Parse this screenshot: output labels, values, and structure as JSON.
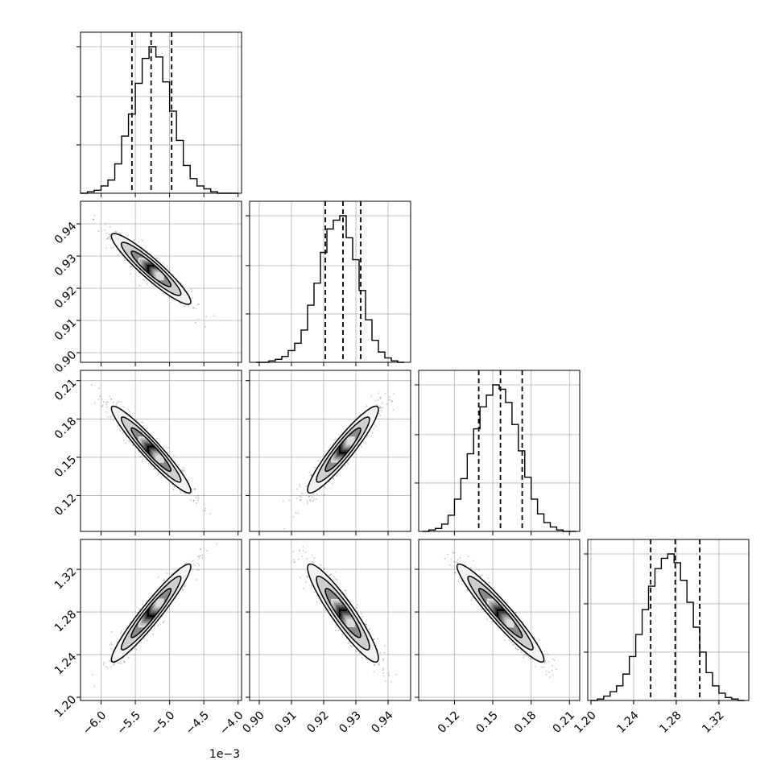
{
  "chart_data": {
    "type": "corner",
    "grid": true,
    "x_offset_label": "1e−3",
    "parameters": [
      {
        "hist_range": [
          -6.3,
          -3.95
        ],
        "hist_peak": 1.0,
        "quantiles": [
          -5.55,
          -5.27,
          -4.97
        ],
        "tick_values": [
          -6.0,
          -5.5,
          -5.0,
          -4.5,
          -4.0
        ],
        "tick_labels": [
          "−6.0",
          "−5.5",
          "−5.0",
          "−4.5",
          "−4.0"
        ],
        "hist": {
          "edges": [
            -6.3,
            -6.2,
            -6.1,
            -6.0,
            -5.9,
            -5.8,
            -5.7,
            -5.6,
            -5.5,
            -5.4,
            -5.3,
            -5.2,
            -5.1,
            -5.0,
            -4.9,
            -4.8,
            -4.7,
            -4.6,
            -4.5,
            -4.4,
            -4.3,
            -4.2,
            -4.1,
            -4.0
          ],
          "counts": [
            0.0,
            0.01,
            0.02,
            0.05,
            0.09,
            0.2,
            0.39,
            0.54,
            0.75,
            0.92,
            1.0,
            0.93,
            0.76,
            0.56,
            0.36,
            0.19,
            0.1,
            0.05,
            0.03,
            0.01,
            0.0,
            0.0,
            0.0
          ]
        }
      },
      {
        "hist_range": [
          0.897,
          0.947
        ],
        "hist_peak": 1.0,
        "quantiles": [
          0.9205,
          0.926,
          0.9315
        ],
        "tick_values": [
          0.9,
          0.91,
          0.92,
          0.93,
          0.94
        ],
        "tick_labels": [
          "0.90",
          "0.91",
          "0.92",
          "0.93",
          "0.94"
        ],
        "hist": {
          "edges": [
            0.899,
            0.901,
            0.903,
            0.905,
            0.907,
            0.909,
            0.911,
            0.913,
            0.915,
            0.917,
            0.919,
            0.921,
            0.923,
            0.925,
            0.927,
            0.929,
            0.931,
            0.933,
            0.935,
            0.937,
            0.939,
            0.941,
            0.943,
            0.945
          ],
          "counts": [
            0.0,
            0.0,
            0.01,
            0.02,
            0.04,
            0.08,
            0.13,
            0.22,
            0.39,
            0.54,
            0.75,
            0.91,
            0.97,
            1.0,
            0.85,
            0.7,
            0.49,
            0.29,
            0.15,
            0.07,
            0.03,
            0.01,
            0.0
          ]
        }
      },
      {
        "hist_range": [
          0.092,
          0.218
        ],
        "hist_peak": 1.0,
        "quantiles": [
          0.139,
          0.156,
          0.173
        ],
        "tick_values": [
          0.12,
          0.15,
          0.18,
          0.21
        ],
        "tick_labels": [
          "0.12",
          "0.15",
          "0.18",
          "0.21"
        ],
        "hist": {
          "edges": [
            0.095,
            0.1,
            0.105,
            0.11,
            0.115,
            0.12,
            0.125,
            0.13,
            0.135,
            0.14,
            0.145,
            0.15,
            0.155,
            0.16,
            0.165,
            0.17,
            0.175,
            0.18,
            0.185,
            0.19,
            0.195,
            0.2,
            0.205,
            0.21,
            0.215
          ],
          "counts": [
            0.0,
            0.01,
            0.02,
            0.05,
            0.11,
            0.22,
            0.36,
            0.53,
            0.7,
            0.85,
            0.93,
            1.0,
            0.97,
            0.88,
            0.73,
            0.55,
            0.37,
            0.22,
            0.12,
            0.06,
            0.03,
            0.01,
            0.0,
            0.0
          ]
        }
      },
      {
        "hist_range": [
          1.197,
          1.348
        ],
        "hist_peak": 1.0,
        "quantiles": [
          1.256,
          1.279,
          1.302
        ],
        "tick_values": [
          1.2,
          1.24,
          1.28,
          1.32
        ],
        "tick_labels": [
          "1.20",
          "1.24",
          "1.28",
          "1.32"
        ],
        "hist": {
          "edges": [
            1.2,
            1.206,
            1.212,
            1.218,
            1.224,
            1.23,
            1.236,
            1.242,
            1.248,
            1.254,
            1.26,
            1.266,
            1.272,
            1.278,
            1.284,
            1.29,
            1.296,
            1.302,
            1.308,
            1.314,
            1.32,
            1.326,
            1.332,
            1.338,
            1.344
          ],
          "counts": [
            0.0,
            0.01,
            0.03,
            0.06,
            0.1,
            0.18,
            0.3,
            0.45,
            0.62,
            0.78,
            0.9,
            0.97,
            1.0,
            0.94,
            0.82,
            0.67,
            0.5,
            0.33,
            0.19,
            0.1,
            0.05,
            0.02,
            0.01,
            0.0
          ]
        }
      }
    ],
    "pairs": [
      {
        "row": 1,
        "col": 0,
        "corr": -0.93
      },
      {
        "row": 2,
        "col": 0,
        "corr": -0.95
      },
      {
        "row": 2,
        "col": 1,
        "corr": 0.93
      },
      {
        "row": 3,
        "col": 0,
        "corr": 0.95
      },
      {
        "row": 3,
        "col": 1,
        "corr": -0.92
      },
      {
        "row": 3,
        "col": 2,
        "corr": -0.95
      }
    ],
    "colors": {
      "line": "#000000",
      "grid": "#b0b0b0",
      "scatter": "#555555"
    }
  }
}
